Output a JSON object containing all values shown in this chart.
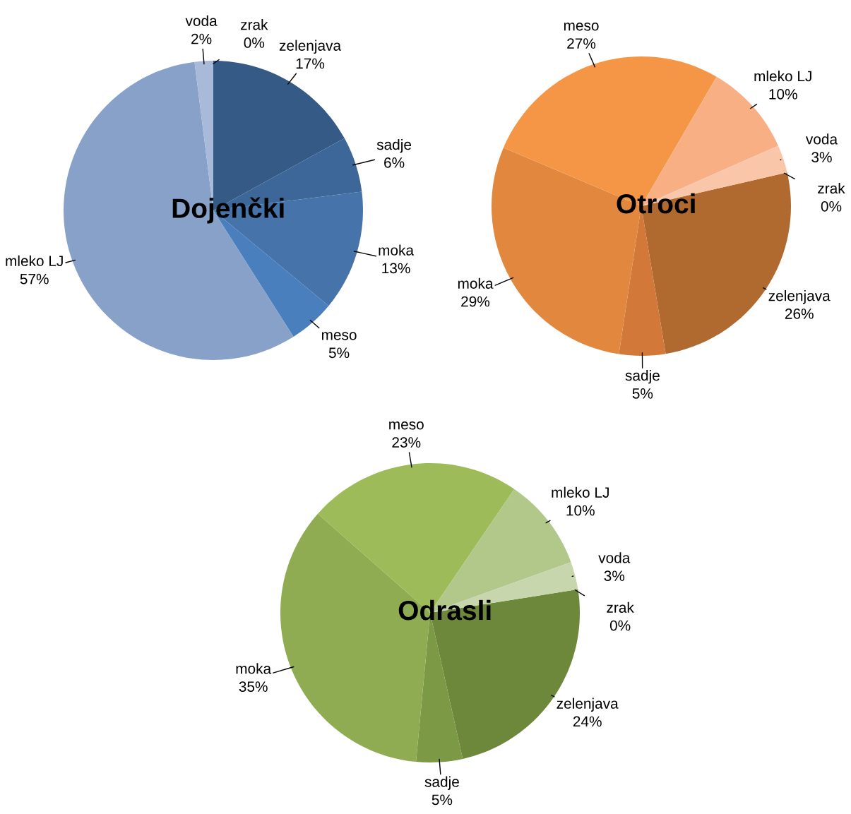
{
  "chart_data": [
    {
      "type": "pie",
      "title": "Dojenčki",
      "categories": [
        "zelenjava",
        "sadje",
        "moka",
        "meso",
        "mleko LJ",
        "voda",
        "zrak"
      ],
      "values": [
        17,
        6,
        13,
        5,
        57,
        2,
        0
      ],
      "value_labels": [
        "17%",
        "6%",
        "13%",
        "5%",
        "57%",
        "2%",
        "0%"
      ],
      "colors": [
        "#355a86",
        "#3d6699",
        "#4673aa",
        "#4a7fbd",
        "#87a1c9",
        "#a8b9d9",
        "#c4cfe5"
      ]
    },
    {
      "type": "pie",
      "title": "Otroci",
      "categories": [
        "zelenjava",
        "sadje",
        "moka",
        "meso",
        "mleko LJ",
        "voda",
        "zrak"
      ],
      "values": [
        26,
        5,
        29,
        27,
        10,
        3,
        0
      ],
      "value_labels": [
        "26%",
        "5%",
        "29%",
        "27%",
        "10%",
        "3%",
        "0%"
      ],
      "colors": [
        "#b06a30",
        "#d2793a",
        "#e2873e",
        "#f59646",
        "#f8af84",
        "#f9c6aa",
        "#fbd9c6"
      ]
    },
    {
      "type": "pie",
      "title": "Odrasli",
      "categories": [
        "zelenjava",
        "sadje",
        "moka",
        "meso",
        "mleko LJ",
        "voda",
        "zrak"
      ],
      "values": [
        24,
        5,
        35,
        23,
        10,
        3,
        0
      ],
      "value_labels": [
        "24%",
        "5%",
        "35%",
        "23%",
        "10%",
        "3%",
        "0%"
      ],
      "colors": [
        "#6d873b",
        "#7c9a45",
        "#8fac52",
        "#9dbb58",
        "#b1c88a",
        "#c7d6ac",
        "#d9e3c6"
      ]
    }
  ]
}
